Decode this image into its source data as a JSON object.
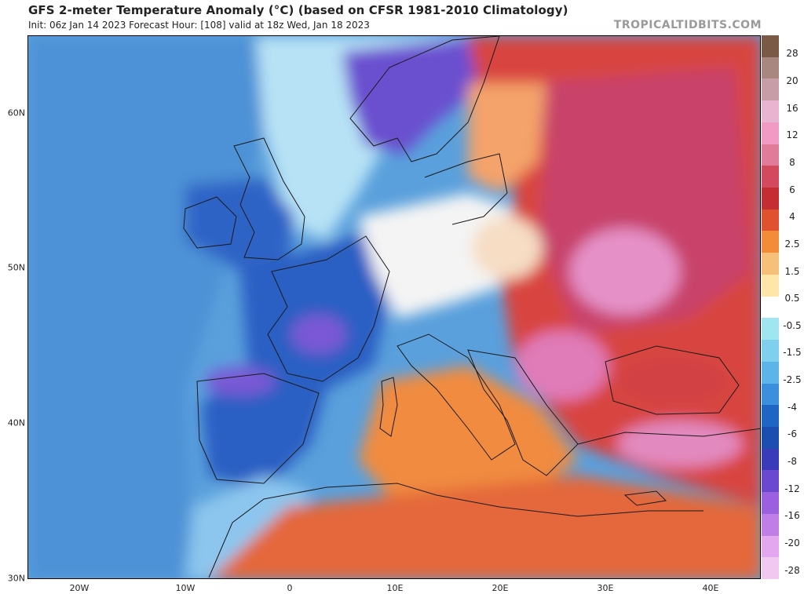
{
  "header": {
    "title": "GFS 2-meter Temperature Anomaly (°C) (based on CFSR 1981-2010 Climatology)",
    "subtitle": "Init: 06z Jan 14 2023   Forecast Hour: [108]   valid at 18z Wed, Jan 18 2023",
    "watermark": "TROPICALTIDBITS.COM"
  },
  "map": {
    "lat_labels": [
      "60N",
      "50N",
      "40N",
      "30N"
    ],
    "lon_labels": [
      "20W",
      "10W",
      "0",
      "10E",
      "20E",
      "30E",
      "40E"
    ],
    "colors": {
      "ocean_cold": "#5aa0dc",
      "ocean_deep": "#3f7fcf",
      "north_light": "#a9d6f2",
      "cold_land": "#2a5fc4",
      "very_cold": "#7b57d3",
      "neutral": "#f5f5f5",
      "warm": "#f08a3e",
      "hot": "#d9413a",
      "very_hot": "#c23560",
      "extreme": "#e48fc8",
      "border": "#1a1a1a"
    }
  },
  "colorbar": {
    "labels": [
      "28",
      "20",
      "16",
      "12",
      "8",
      "6",
      "4",
      "2.5",
      "1.5",
      "0.5",
      "-0.5",
      "-1.5",
      "-2.5",
      "-4",
      "-6",
      "-8",
      "-12",
      "-16",
      "-20",
      "-28"
    ],
    "colors": [
      "#7a5a45",
      "#a88780",
      "#c79ea8",
      "#e9b4cf",
      "#f09ac4",
      "#e07c9a",
      "#d34a5e",
      "#c42e33",
      "#e0512f",
      "#f28c38",
      "#f6c07a",
      "#fde6a8",
      "#ffffff",
      "#9fe6f0",
      "#7fd0ee",
      "#5cb4e8",
      "#3c8fdc",
      "#1f66c4",
      "#1c4eb0",
      "#3a3bb8",
      "#6a48cf",
      "#9a60e0",
      "#c07fe6",
      "#e2a7ee",
      "#f0c8f0"
    ]
  }
}
